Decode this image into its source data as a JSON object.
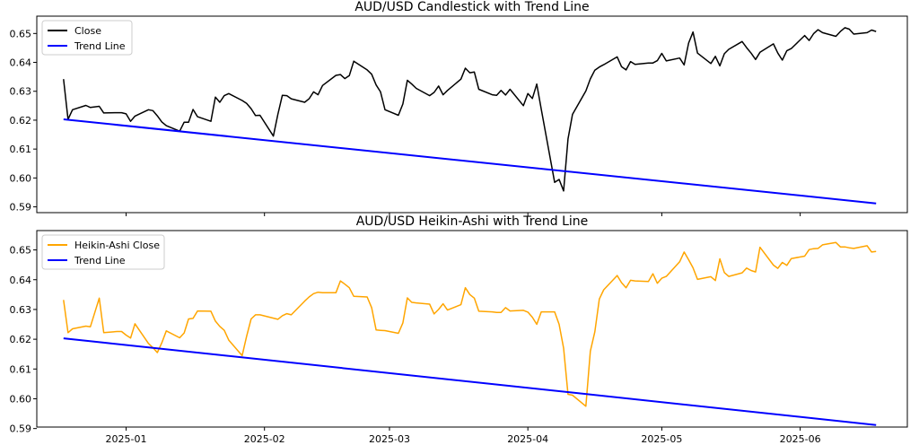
{
  "chart_data": [
    {
      "type": "line",
      "title": "AUD/USD Candlestick with Trend Line",
      "xlabel": "",
      "ylabel": "",
      "ylim": [
        0.588,
        0.656
      ],
      "xlim": [
        "2024-12-12",
        "2025-06-25"
      ],
      "grid": false,
      "legend_position": "top-left",
      "yticks": [
        "0.59",
        "0.60",
        "0.61",
        "0.62",
        "0.63",
        "0.64",
        "0.65"
      ],
      "xticks": [],
      "series": [
        {
          "name": "Close",
          "color": "#000000",
          "x": [
            "2024-12-18",
            "2024-12-19",
            "2024-12-20",
            "2024-12-23",
            "2024-12-24",
            "2024-12-26",
            "2024-12-27",
            "2024-12-30",
            "2024-12-31",
            "2025-01-01",
            "2025-01-02",
            "2025-01-03",
            "2025-01-06",
            "2025-01-07",
            "2025-01-08",
            "2025-01-09",
            "2025-01-10",
            "2025-01-13",
            "2025-01-14",
            "2025-01-15",
            "2025-01-16",
            "2025-01-17",
            "2025-01-20",
            "2025-01-21",
            "2025-01-22",
            "2025-01-23",
            "2025-01-24",
            "2025-01-27",
            "2025-01-28",
            "2025-01-29",
            "2025-01-30",
            "2025-01-31",
            "2025-02-03",
            "2025-02-04",
            "2025-02-05",
            "2025-02-06",
            "2025-02-07",
            "2025-02-10",
            "2025-02-11",
            "2025-02-12",
            "2025-02-13",
            "2025-02-14",
            "2025-02-17",
            "2025-02-18",
            "2025-02-19",
            "2025-02-20",
            "2025-02-21",
            "2025-02-24",
            "2025-02-25",
            "2025-02-26",
            "2025-02-27",
            "2025-02-28",
            "2025-03-03",
            "2025-03-04",
            "2025-03-05",
            "2025-03-06",
            "2025-03-07",
            "2025-03-10",
            "2025-03-11",
            "2025-03-12",
            "2025-03-13",
            "2025-03-14",
            "2025-03-17",
            "2025-03-18",
            "2025-03-19",
            "2025-03-20",
            "2025-03-21",
            "2025-03-24",
            "2025-03-25",
            "2025-03-26",
            "2025-03-27",
            "2025-03-28",
            "2025-03-31",
            "2025-04-01",
            "2025-04-02",
            "2025-04-03",
            "2025-04-04",
            "2025-04-07",
            "2025-04-08",
            "2025-04-09",
            "2025-04-10",
            "2025-04-11",
            "2025-04-14",
            "2025-04-15",
            "2025-04-16",
            "2025-04-17",
            "2025-04-18",
            "2025-04-21",
            "2025-04-22",
            "2025-04-23",
            "2025-04-24",
            "2025-04-25",
            "2025-04-28",
            "2025-04-29",
            "2025-04-30",
            "2025-05-01",
            "2025-05-02",
            "2025-05-05",
            "2025-05-06",
            "2025-05-07",
            "2025-05-08",
            "2025-05-09",
            "2025-05-12",
            "2025-05-13",
            "2025-05-14",
            "2025-05-15",
            "2025-05-16",
            "2025-05-19",
            "2025-05-20",
            "2025-05-21",
            "2025-05-22",
            "2025-05-23",
            "2025-05-26",
            "2025-05-27",
            "2025-05-28",
            "2025-05-29",
            "2025-05-30",
            "2025-06-02",
            "2025-06-03",
            "2025-06-04",
            "2025-06-05",
            "2025-06-06",
            "2025-06-09",
            "2025-06-10",
            "2025-06-11",
            "2025-06-12",
            "2025-06-13",
            "2025-06-16",
            "2025-06-17",
            "2025-06-18"
          ],
          "values": [
            0.6342,
            0.6203,
            0.6236,
            0.6251,
            0.6244,
            0.6248,
            0.6225,
            0.6226,
            0.6226,
            0.6222,
            0.6196,
            0.6214,
            0.6236,
            0.6233,
            0.6215,
            0.6194,
            0.6181,
            0.6162,
            0.6193,
            0.6193,
            0.6237,
            0.6212,
            0.6196,
            0.628,
            0.6262,
            0.6285,
            0.6292,
            0.6268,
            0.6258,
            0.624,
            0.6216,
            0.6217,
            0.6145,
            0.622,
            0.6286,
            0.6285,
            0.6274,
            0.6262,
            0.6274,
            0.6298,
            0.6288,
            0.632,
            0.6355,
            0.6358,
            0.6344,
            0.6354,
            0.6404,
            0.6374,
            0.6359,
            0.6322,
            0.6298,
            0.6236,
            0.6217,
            0.6256,
            0.6338,
            0.6325,
            0.631,
            0.6285,
            0.6296,
            0.6318,
            0.6288,
            0.6303,
            0.6342,
            0.638,
            0.6364,
            0.6367,
            0.6307,
            0.6288,
            0.6286,
            0.6303,
            0.6287,
            0.6307,
            0.625,
            0.6292,
            0.6275,
            0.6325,
            0.6238,
            0.5985,
            0.5995,
            0.5955,
            0.6135,
            0.622,
            0.6301,
            0.6343,
            0.6373,
            0.6384,
            0.6392,
            0.6419,
            0.6385,
            0.6374,
            0.6403,
            0.6393,
            0.6398,
            0.6398,
            0.6406,
            0.6431,
            0.6405,
            0.6415,
            0.6391,
            0.6467,
            0.6505,
            0.6432,
            0.6396,
            0.6421,
            0.6388,
            0.643,
            0.6445,
            0.6472,
            0.6451,
            0.6432,
            0.641,
            0.6435,
            0.6464,
            0.6432,
            0.6408,
            0.644,
            0.6448,
            0.6493,
            0.6476,
            0.6499,
            0.6513,
            0.6503,
            0.649,
            0.6507,
            0.652,
            0.6515,
            0.6498,
            0.6503,
            0.6512,
            0.6507
          ]
        },
        {
          "name": "Trend Line",
          "color": "#0000ff",
          "x": [
            "2024-12-18",
            "2025-06-18"
          ],
          "values": [
            0.6203,
            0.5912
          ]
        }
      ]
    },
    {
      "type": "line",
      "title": "AUD/USD Heikin-Ashi with Trend Line",
      "xlabel": "",
      "ylabel": "",
      "ylim": [
        0.5905,
        0.6565
      ],
      "xlim": [
        "2024-12-12",
        "2025-06-25"
      ],
      "grid": false,
      "legend_position": "top-left",
      "yticks": [
        "0.59",
        "0.60",
        "0.61",
        "0.62",
        "0.63",
        "0.64",
        "0.65"
      ],
      "xticks": [
        "2025-01",
        "2025-02",
        "2025-03",
        "2025-04",
        "2025-05",
        "2025-06"
      ],
      "xtick_dates": [
        "2025-01-01",
        "2025-02-01",
        "2025-03-01",
        "2025-04-01",
        "2025-05-01",
        "2025-06-01"
      ],
      "series": [
        {
          "name": "Heikin-Ashi Close",
          "color": "#ffa500",
          "x": [
            "2024-12-18",
            "2024-12-19",
            "2024-12-20",
            "2024-12-23",
            "2024-12-24",
            "2024-12-26",
            "2024-12-27",
            "2024-12-30",
            "2024-12-31",
            "2025-01-01",
            "2025-01-02",
            "2025-01-03",
            "2025-01-06",
            "2025-01-07",
            "2025-01-08",
            "2025-01-09",
            "2025-01-10",
            "2025-01-13",
            "2025-01-14",
            "2025-01-15",
            "2025-01-16",
            "2025-01-17",
            "2025-01-20",
            "2025-01-21",
            "2025-01-22",
            "2025-01-23",
            "2025-01-24",
            "2025-01-27",
            "2025-01-28",
            "2025-01-29",
            "2025-01-30",
            "2025-01-31",
            "2025-02-03",
            "2025-02-04",
            "2025-02-05",
            "2025-02-06",
            "2025-02-07",
            "2025-02-10",
            "2025-02-11",
            "2025-02-12",
            "2025-02-13",
            "2025-02-14",
            "2025-02-17",
            "2025-02-18",
            "2025-02-19",
            "2025-02-20",
            "2025-02-21",
            "2025-02-24",
            "2025-02-25",
            "2025-02-26",
            "2025-02-27",
            "2025-02-28",
            "2025-03-03",
            "2025-03-04",
            "2025-03-05",
            "2025-03-06",
            "2025-03-07",
            "2025-03-10",
            "2025-03-11",
            "2025-03-12",
            "2025-03-13",
            "2025-03-14",
            "2025-03-17",
            "2025-03-18",
            "2025-03-19",
            "2025-03-20",
            "2025-03-21",
            "2025-03-24",
            "2025-03-25",
            "2025-03-26",
            "2025-03-27",
            "2025-03-28",
            "2025-03-31",
            "2025-04-01",
            "2025-04-02",
            "2025-04-03",
            "2025-04-04",
            "2025-04-07",
            "2025-04-08",
            "2025-04-09",
            "2025-04-10",
            "2025-04-11",
            "2025-04-14",
            "2025-04-15",
            "2025-04-16",
            "2025-04-17",
            "2025-04-18",
            "2025-04-21",
            "2025-04-22",
            "2025-04-23",
            "2025-04-24",
            "2025-04-25",
            "2025-04-28",
            "2025-04-29",
            "2025-04-30",
            "2025-05-01",
            "2025-05-02",
            "2025-05-05",
            "2025-05-06",
            "2025-05-07",
            "2025-05-08",
            "2025-05-09",
            "2025-05-12",
            "2025-05-13",
            "2025-05-14",
            "2025-05-15",
            "2025-05-16",
            "2025-05-19",
            "2025-05-20",
            "2025-05-21",
            "2025-05-22",
            "2025-05-23",
            "2025-05-26",
            "2025-05-27",
            "2025-05-28",
            "2025-05-29",
            "2025-05-30",
            "2025-06-02",
            "2025-06-03",
            "2025-06-04",
            "2025-06-05",
            "2025-06-06",
            "2025-06-09",
            "2025-06-10",
            "2025-06-11",
            "2025-06-12",
            "2025-06-13",
            "2025-06-16",
            "2025-06-17",
            "2025-06-18"
          ],
          "values": [
            0.6332,
            0.6222,
            0.6235,
            0.6244,
            0.6242,
            0.6338,
            0.6222,
            0.6226,
            0.6226,
            0.6214,
            0.6204,
            0.6252,
            0.6186,
            0.6172,
            0.6155,
            0.6188,
            0.6228,
            0.6205,
            0.6221,
            0.6268,
            0.627,
            0.6295,
            0.6294,
            0.6261,
            0.6243,
            0.623,
            0.6197,
            0.6145,
            0.621,
            0.6268,
            0.6282,
            0.6282,
            0.6271,
            0.6267,
            0.6279,
            0.6286,
            0.6282,
            0.6328,
            0.6342,
            0.6353,
            0.6358,
            0.6356,
            0.6356,
            0.6396,
            0.6385,
            0.6373,
            0.6344,
            0.6342,
            0.6306,
            0.6231,
            0.623,
            0.6229,
            0.622,
            0.6255,
            0.6339,
            0.6324,
            0.6322,
            0.6318,
            0.6285,
            0.63,
            0.6319,
            0.6298,
            0.6316,
            0.6373,
            0.635,
            0.6338,
            0.6294,
            0.6292,
            0.629,
            0.629,
            0.6306,
            0.6295,
            0.6297,
            0.6291,
            0.6274,
            0.625,
            0.6292,
            0.6292,
            0.625,
            0.617,
            0.6015,
            0.6012,
            0.5975,
            0.616,
            0.6225,
            0.6335,
            0.6366,
            0.6414,
            0.639,
            0.6373,
            0.6398,
            0.6396,
            0.6394,
            0.642,
            0.6388,
            0.6405,
            0.6411,
            0.646,
            0.6493,
            0.6467,
            0.644,
            0.6401,
            0.641,
            0.6397,
            0.647,
            0.6424,
            0.6411,
            0.6423,
            0.6439,
            0.6431,
            0.6426,
            0.6509,
            0.6449,
            0.6438,
            0.6458,
            0.6448,
            0.6471,
            0.6479,
            0.6501,
            0.6504,
            0.6505,
            0.6517,
            0.6525,
            0.651,
            0.651,
            0.6507,
            0.6505,
            0.6514,
            0.6493,
            0.6495
          ]
        },
        {
          "name": "Trend Line",
          "color": "#0000ff",
          "x": [
            "2024-12-18",
            "2025-06-18"
          ],
          "values": [
            0.6203,
            0.5912
          ]
        }
      ]
    }
  ]
}
